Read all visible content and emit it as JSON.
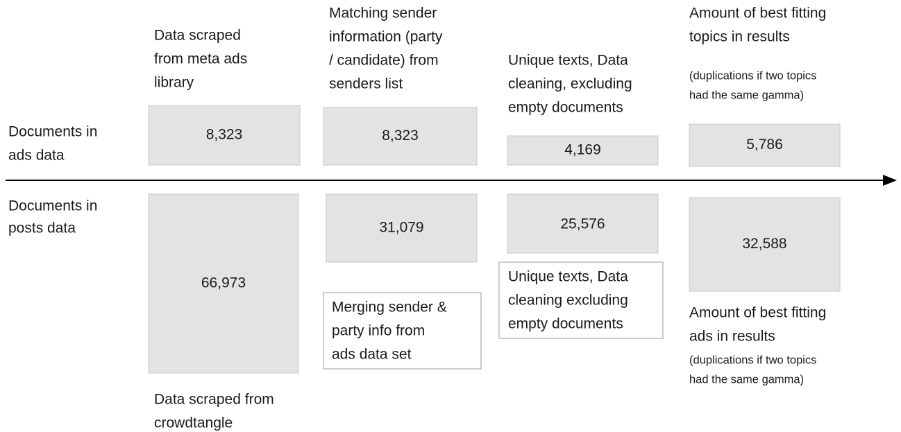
{
  "row_labels": {
    "ads": [
      "Documents in",
      "ads data"
    ],
    "posts": [
      "Documents in",
      "posts data"
    ]
  },
  "columns": [
    {
      "header": [
        "Data scraped",
        "from meta ads",
        "library"
      ],
      "ads_count": "8,323",
      "posts_count": "66,973",
      "posts_caption": [
        "Data scraped from",
        "crowdtangle"
      ]
    },
    {
      "header": [
        "Matching sender",
        "information (party",
        "/ candidate) from",
        "senders list"
      ],
      "ads_count": "8,323",
      "posts_count": "31,079",
      "posts_caption": [
        "Merging sender &",
        "party info from",
        "ads data set"
      ]
    },
    {
      "header": [
        "Unique texts, Data",
        "cleaning, excluding",
        "empty documents"
      ],
      "ads_count": "4,169",
      "posts_count": "25,576",
      "posts_caption": [
        "Unique texts, Data",
        "cleaning excluding",
        "empty documents"
      ]
    },
    {
      "header": [
        "Amount of best fitting",
        "topics in results"
      ],
      "header_note": [
        "(duplications if two topics",
        "had the same gamma)"
      ],
      "ads_count": "5,786",
      "posts_count": "32,588",
      "posts_caption": [
        "Amount of best fitting",
        "ads in results"
      ],
      "posts_caption_note": [
        "(duplications if two topics",
        "had the same gamma)"
      ]
    }
  ]
}
